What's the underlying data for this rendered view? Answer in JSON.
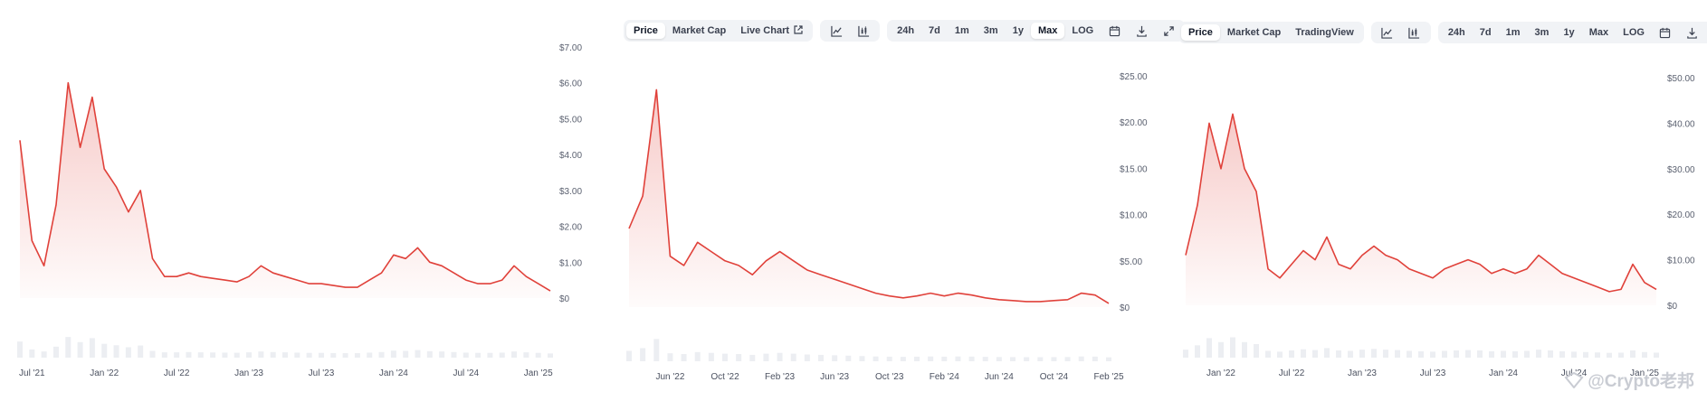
{
  "panels": [
    {
      "toolbar": null,
      "chart_data": {
        "type": "area",
        "x": [
          "2021-06",
          "2021-07",
          "2021-08",
          "2021-09",
          "2021-10",
          "2021-11",
          "2021-12",
          "2022-01",
          "2022-02",
          "2022-03",
          "2022-04",
          "2022-05",
          "2022-06",
          "2022-07",
          "2022-08",
          "2022-09",
          "2022-10",
          "2022-11",
          "2022-12",
          "2023-01",
          "2023-02",
          "2023-03",
          "2023-04",
          "2023-05",
          "2023-06",
          "2023-07",
          "2023-08",
          "2023-09",
          "2023-10",
          "2023-11",
          "2023-12",
          "2024-01",
          "2024-02",
          "2024-03",
          "2024-04",
          "2024-05",
          "2024-06",
          "2024-07",
          "2024-08",
          "2024-09",
          "2024-10",
          "2024-11",
          "2024-12",
          "2025-01",
          "2025-02"
        ],
        "y": [
          4.4,
          1.6,
          0.9,
          2.6,
          6.0,
          4.2,
          5.6,
          3.6,
          3.1,
          2.4,
          3.0,
          1.1,
          0.6,
          0.6,
          0.7,
          0.6,
          0.55,
          0.5,
          0.45,
          0.6,
          0.9,
          0.7,
          0.6,
          0.5,
          0.4,
          0.4,
          0.35,
          0.3,
          0.3,
          0.5,
          0.7,
          1.2,
          1.1,
          1.4,
          1.0,
          0.9,
          0.7,
          0.5,
          0.4,
          0.4,
          0.5,
          0.9,
          0.6,
          0.4,
          0.2
        ],
        "xticks": [
          "Jul '21",
          "Jan '22",
          "Jul '22",
          "Jan '23",
          "Jul '23",
          "Jan '24",
          "Jul '24",
          "Jan '25"
        ],
        "xtick_values": [
          "2021-07",
          "2022-01",
          "2022-07",
          "2023-01",
          "2023-07",
          "2024-01",
          "2024-07",
          "2025-01"
        ],
        "yticks": [
          "$0",
          "$1.00",
          "$2.00",
          "$3.00",
          "$4.00",
          "$5.00",
          "$6.00",
          "$7.00"
        ],
        "ylim": [
          0,
          7
        ],
        "color": "#e0413a"
      }
    },
    {
      "toolbar": {
        "tabs": [
          "Price",
          "Market Cap",
          "Live Chart"
        ],
        "active_tab": 0,
        "ranges": [
          "24h",
          "7d",
          "1m",
          "3m",
          "1y",
          "Max",
          "LOG"
        ],
        "active_range": 5
      },
      "chart_data": {
        "type": "area",
        "x": [
          "2022-03",
          "2022-04",
          "2022-05",
          "2022-06",
          "2022-07",
          "2022-08",
          "2022-09",
          "2022-10",
          "2022-11",
          "2022-12",
          "2023-01",
          "2023-02",
          "2023-03",
          "2023-04",
          "2023-05",
          "2023-06",
          "2023-07",
          "2023-08",
          "2023-09",
          "2023-10",
          "2023-11",
          "2023-12",
          "2024-01",
          "2024-02",
          "2024-03",
          "2024-04",
          "2024-05",
          "2024-06",
          "2024-07",
          "2024-08",
          "2024-09",
          "2024-10",
          "2024-11",
          "2024-12",
          "2025-01",
          "2025-02"
        ],
        "y": [
          8.5,
          12.0,
          23.5,
          5.5,
          4.5,
          7.0,
          6.0,
          5.0,
          4.5,
          3.5,
          5.0,
          6.0,
          5.0,
          4.0,
          3.5,
          3.0,
          2.5,
          2.0,
          1.5,
          1.2,
          1.0,
          1.2,
          1.5,
          1.2,
          1.5,
          1.3,
          1.0,
          0.8,
          0.7,
          0.6,
          0.6,
          0.7,
          0.8,
          1.5,
          1.3,
          0.4
        ],
        "xticks": [
          "Jun '22",
          "Oct '22",
          "Feb '23",
          "Jun '23",
          "Oct '23",
          "Feb '24",
          "Jun '24",
          "Oct '24",
          "Feb '25"
        ],
        "xtick_values": [
          "2022-06",
          "2022-10",
          "2023-02",
          "2023-06",
          "2023-10",
          "2024-02",
          "2024-06",
          "2024-10",
          "2025-02"
        ],
        "yticks": [
          "$0",
          "$5.00",
          "$10.00",
          "$15.00",
          "$20.00",
          "$25.00"
        ],
        "ylim": [
          0,
          25
        ],
        "color": "#e0413a"
      }
    },
    {
      "toolbar": {
        "tabs": [
          "Price",
          "Market Cap",
          "TradingView"
        ],
        "active_tab": 0,
        "ranges": [
          "24h",
          "7d",
          "1m",
          "3m",
          "1y",
          "Max",
          "LOG"
        ],
        "active_range": -1
      },
      "chart_data": {
        "type": "area",
        "x": [
          "2021-10",
          "2021-11",
          "2021-12",
          "2022-01",
          "2022-02",
          "2022-03",
          "2022-04",
          "2022-05",
          "2022-06",
          "2022-07",
          "2022-08",
          "2022-09",
          "2022-10",
          "2022-11",
          "2022-12",
          "2023-01",
          "2023-02",
          "2023-03",
          "2023-04",
          "2023-05",
          "2023-06",
          "2023-07",
          "2023-08",
          "2023-09",
          "2023-10",
          "2023-11",
          "2023-12",
          "2024-01",
          "2024-02",
          "2024-03",
          "2024-04",
          "2024-05",
          "2024-06",
          "2024-07",
          "2024-08",
          "2024-09",
          "2024-10",
          "2024-11",
          "2024-12",
          "2025-01",
          "2025-02"
        ],
        "y": [
          11.0,
          22.0,
          40.0,
          30.0,
          42.0,
          30.0,
          25.0,
          8.0,
          6.0,
          9.0,
          12.0,
          10.0,
          15.0,
          9.0,
          8.0,
          11.0,
          13.0,
          11.0,
          10.0,
          8.0,
          7.0,
          6.0,
          8.0,
          9.0,
          10.0,
          9.0,
          7.0,
          8.0,
          7.0,
          8.0,
          11.0,
          9.0,
          7.0,
          6.0,
          5.0,
          4.0,
          3.0,
          3.5,
          9.0,
          5.0,
          3.5
        ],
        "xticks": [
          "Jan '22",
          "Jul '22",
          "Jan '23",
          "Jul '23",
          "Jan '24",
          "Jul '24",
          "Jan '25"
        ],
        "xtick_values": [
          "2022-01",
          "2022-07",
          "2023-01",
          "2023-07",
          "2024-01",
          "2024-07",
          "2025-01"
        ],
        "yticks": [
          "$0",
          "$10.00",
          "$20.00",
          "$30.00",
          "$40.00",
          "$50.00"
        ],
        "ylim": [
          0,
          50
        ],
        "color": "#e0413a"
      }
    }
  ],
  "watermark": "@Crypto老邦"
}
